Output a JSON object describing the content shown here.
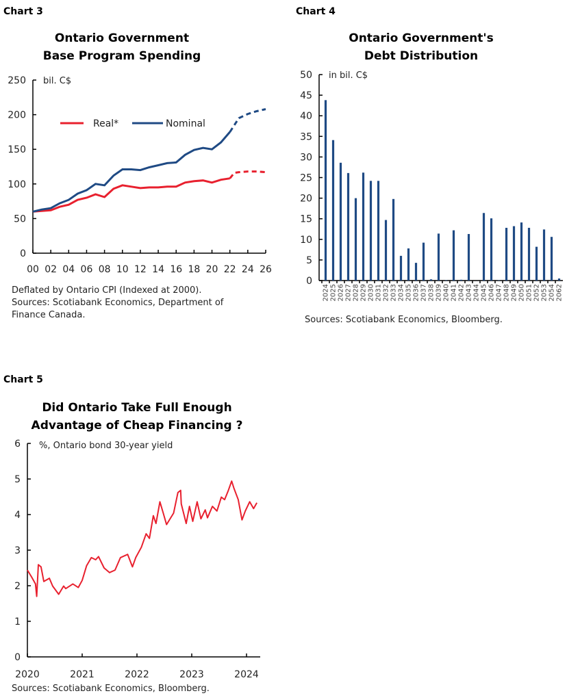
{
  "colors": {
    "real": "#e8202e",
    "nominal": "#1f4a84",
    "bars": "#1f4a84",
    "yield": "#e8202e"
  },
  "chart_data": [
    {
      "header": "Chart 3",
      "type": "line",
      "title": [
        "Ontario Government",
        "Base Program Spending"
      ],
      "unit_label": "bil. C$",
      "ylim": [
        0,
        250
      ],
      "yticks": [
        0,
        50,
        100,
        150,
        200,
        250
      ],
      "xticks": [
        "00",
        "02",
        "04",
        "06",
        "08",
        "10",
        "12",
        "14",
        "16",
        "18",
        "20",
        "22",
        "24",
        "26"
      ],
      "xlim": [
        2000,
        2026
      ],
      "legend": "top-left, inside",
      "series": [
        {
          "name": "Real*",
          "color": "#e8202e",
          "x": [
            2000,
            2001,
            2002,
            2003,
            2004,
            2005,
            2006,
            2007,
            2008,
            2009,
            2010,
            2011,
            2012,
            2013,
            2014,
            2015,
            2016,
            2017,
            2018,
            2019,
            2020,
            2021,
            2022
          ],
          "values": [
            60,
            61,
            62,
            67,
            70,
            77,
            80,
            85,
            81,
            93,
            98,
            96,
            94,
            95,
            95,
            96,
            96,
            102,
            104,
            105,
            102,
            106,
            108
          ],
          "projection_x": [
            2022,
            2022.5,
            2023,
            2024,
            2025,
            2026
          ],
          "projection_values": [
            108,
            116,
            117,
            118,
            118,
            117
          ]
        },
        {
          "name": "Nominal",
          "color": "#1f4a84",
          "x": [
            2000,
            2001,
            2002,
            2003,
            2004,
            2005,
            2006,
            2007,
            2008,
            2009,
            2010,
            2011,
            2012,
            2013,
            2014,
            2015,
            2016,
            2017,
            2018,
            2019,
            2020,
            2021,
            2022
          ],
          "values": [
            60,
            63,
            65,
            72,
            77,
            86,
            91,
            100,
            98,
            112,
            121,
            121,
            120,
            124,
            127,
            130,
            131,
            142,
            149,
            152,
            150,
            160,
            175
          ],
          "projection_x": [
            2022,
            2023,
            2024,
            2025,
            2026
          ],
          "projection_values": [
            175,
            195,
            201,
            205,
            208
          ]
        }
      ],
      "notes": [
        "Deflated by Ontario CPI (Indexed at 2000).",
        "Sources: Scotiabank Economics, Department of",
        "Finance Canada."
      ]
    },
    {
      "header": "Chart 4",
      "type": "bar",
      "title": [
        "Ontario Government's",
        "Debt Distribution"
      ],
      "unit_label": "in bil. C$",
      "ylim": [
        0,
        50
      ],
      "yticks": [
        0,
        5,
        10,
        15,
        20,
        25,
        30,
        35,
        40,
        45,
        50
      ],
      "categories": [
        "2024",
        "2025",
        "2026",
        "2027",
        "2028",
        "2029",
        "2030",
        "2031",
        "2032",
        "2033",
        "2034",
        "2035",
        "2036",
        "2037",
        "2038",
        "2039",
        "2040",
        "2041",
        "2042",
        "2043",
        "2044",
        "2045",
        "2046",
        "2047",
        "2048",
        "2049",
        "2050",
        "2051",
        "2052",
        "2053",
        "2054",
        "2062"
      ],
      "values": [
        43.8,
        34.1,
        28.6,
        26.1,
        20.0,
        26.2,
        24.2,
        24.2,
        14.7,
        19.8,
        6.0,
        7.8,
        4.3,
        9.2,
        0.3,
        11.4,
        0.1,
        12.2,
        0.2,
        11.3,
        0,
        16.4,
        15.1,
        0.1,
        12.8,
        13.2,
        14.1,
        12.8,
        8.2,
        12.4,
        10.6,
        0.5
      ],
      "notes": [
        "Sources: Scotiabank Economics, Bloomberg."
      ]
    },
    {
      "header": "Chart 5",
      "type": "line",
      "title": [
        "Did Ontario Take Full Enough",
        "Advantage of Cheap Financing ?"
      ],
      "unit_label": "%, Ontario bond 30-year yield",
      "ylim": [
        0,
        6
      ],
      "yticks": [
        0,
        1,
        2,
        3,
        4,
        5,
        6
      ],
      "xticks": [
        "2020",
        "2021",
        "2022",
        "2023",
        "2024"
      ],
      "series": [
        {
          "color": "#e8202e",
          "x": [
            "2020-01-01",
            "2020-01-30",
            "2020-02-24",
            "2020-03-03",
            "2020-03-14",
            "2020-04-01",
            "2020-04-20",
            "2020-05-27",
            "2020-06-18",
            "2020-07-28",
            "2020-08-30",
            "2020-09-13",
            "2020-10-31",
            "2020-12-06",
            "2021-01-01",
            "2021-01-30",
            "2021-03-03",
            "2021-04-01",
            "2021-04-20",
            "2021-05-27",
            "2021-07-02",
            "2021-08-08",
            "2021-09-13",
            "2021-10-31",
            "2021-12-02",
            "2021-12-24",
            "2022-01-30",
            "2022-03-03",
            "2022-03-25",
            "2022-04-20",
            "2022-05-08",
            "2022-06-03",
            "2022-06-25",
            "2022-07-17",
            "2022-09-02",
            "2022-10-01",
            "2022-10-19",
            "2022-10-23",
            "2022-11-25",
            "2022-12-17",
            "2023-01-08",
            "2023-02-06",
            "2023-03-03",
            "2023-04-01",
            "2023-04-16",
            "2023-05-19",
            "2023-06-18",
            "2023-07-17",
            "2023-08-08",
            "2023-09-02",
            "2023-09-24",
            "2023-10-09",
            "2023-11-07",
            "2023-12-02",
            "2023-12-24",
            "2024-01-22",
            "2024-02-17",
            "2024-03-10"
          ],
          "values": [
            2.44,
            2.24,
            2.05,
            1.7,
            2.59,
            2.53,
            2.12,
            2.21,
            1.99,
            1.76,
            1.99,
            1.92,
            2.05,
            1.95,
            2.15,
            2.56,
            2.79,
            2.73,
            2.82,
            2.5,
            2.37,
            2.44,
            2.79,
            2.88,
            2.53,
            2.79,
            3.08,
            3.46,
            3.33,
            3.97,
            3.75,
            4.36,
            4.04,
            3.72,
            4.04,
            4.62,
            4.68,
            4.3,
            3.75,
            4.23,
            3.81,
            4.36,
            3.88,
            4.13,
            3.91,
            4.23,
            4.1,
            4.49,
            4.42,
            4.68,
            4.94,
            4.74,
            4.42,
            3.85,
            4.1,
            4.36,
            4.17,
            4.33
          ]
        }
      ],
      "notes": [
        "Sources: Scotiabank Economics, Bloomberg."
      ]
    }
  ]
}
